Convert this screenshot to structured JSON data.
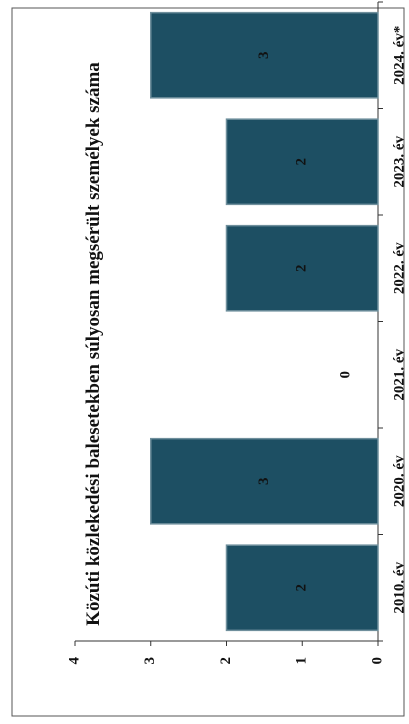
{
  "chart_data": {
    "type": "bar",
    "title": "Közúti közlekedési balesetekben súlyosan megsérült személyek száma",
    "categories": [
      "2010. év",
      "2020. év",
      "2021. év",
      "2022. év",
      "2023. év",
      "2024. év*"
    ],
    "values": [
      2,
      3,
      0,
      2,
      2,
      3
    ],
    "color": "#1d4f63",
    "ylim": [
      0,
      4
    ],
    "yticks": [
      0,
      1,
      2,
      3,
      4
    ]
  }
}
